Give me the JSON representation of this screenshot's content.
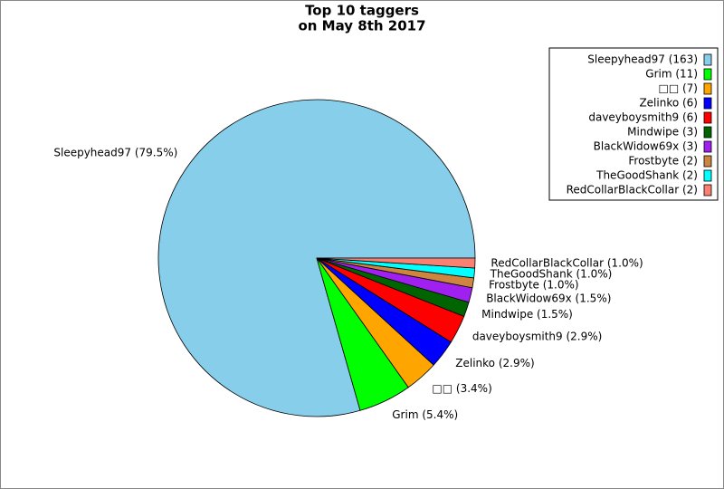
{
  "chart_data": {
    "type": "pie",
    "title": [
      "Top 10 taggers",
      "on May 8th 2017"
    ],
    "categories": [
      "Sleepyhead97 (163)",
      "Grim (11)",
      "□□ (7)",
      "Zelinko (6)",
      "daveyboysmith9 (6)",
      "Mindwipe (3)",
      "BlackWidow69x (3)",
      "Frostbyte (2)",
      "TheGoodShank (2)",
      "RedCollarBlackCollar (2)"
    ],
    "values": [
      79.5,
      5.4,
      3.4,
      2.9,
      2.9,
      1.5,
      1.5,
      1.0,
      1.0,
      1.0
    ],
    "value_labels": [
      "Sleepyhead97 (79.5%)",
      "Grim (5.4%)",
      "□□ (3.4%)",
      "Zelinko (2.9%)",
      "daveyboysmith9 (2.9%)",
      "Mindwipe (1.5%)",
      "BlackWidow69x (1.5%)",
      "Frostbyte (1.0%)",
      "TheGoodShank (1.0%)",
      "RedCollarBlackCollar (1.0%)"
    ],
    "colors": [
      "#87ceeb",
      "#00ff00",
      "#ffa500",
      "#0000ff",
      "#ff0000",
      "#006400",
      "#a020f0",
      "#cd853f",
      "#00ffff",
      "#fa8072"
    ],
    "legend": "upper right"
  }
}
